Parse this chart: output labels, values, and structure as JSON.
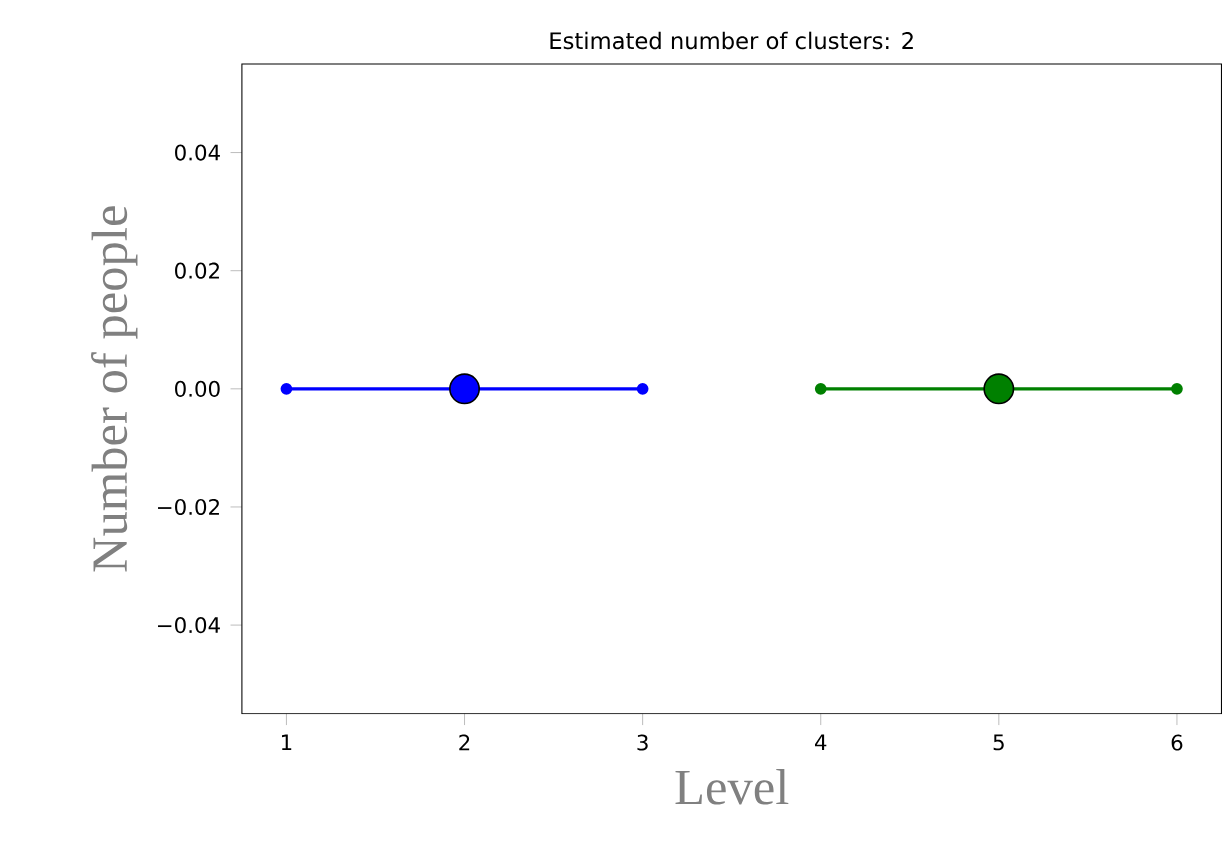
{
  "chart_data": {
    "type": "line",
    "title": "Estimated number of clusters: 2",
    "xlabel": "Level",
    "ylabel": "Number of people",
    "xlim": [
      0.75,
      6.25
    ],
    "ylim": [
      -0.055,
      0.055
    ],
    "xticks": [
      1,
      2,
      3,
      4,
      5,
      6
    ],
    "yticks": [
      {
        "value": -0.04,
        "label": "−0.04"
      },
      {
        "value": -0.02,
        "label": "−0.02"
      },
      {
        "value": 0,
        "label": "0.00"
      },
      {
        "value": 0.02,
        "label": "0.02"
      },
      {
        "value": 0.04,
        "label": "0.04"
      }
    ],
    "marker": "circle",
    "series": [
      {
        "color": "#0000ff",
        "x": [
          1,
          2,
          3
        ],
        "values": [
          0,
          0,
          0
        ]
      },
      {
        "type": "scatter",
        "color": "#0000ff",
        "x": [
          2
        ],
        "values": [
          0
        ]
      },
      {
        "color": "#008000",
        "x": [
          4,
          5,
          6
        ],
        "values": [
          0,
          0,
          0
        ]
      },
      {
        "type": "scatter",
        "color": "#008000",
        "x": [
          5
        ],
        "values": [
          0
        ]
      }
    ]
  }
}
